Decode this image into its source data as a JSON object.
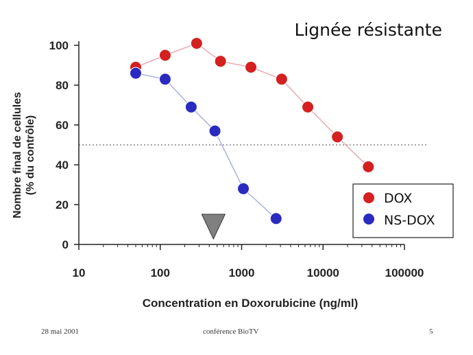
{
  "footer": {
    "date": "28 mai 2001",
    "center": "conférence BioTV",
    "page": "5"
  },
  "chart_data": {
    "type": "scatter",
    "title": "Lignée résistante",
    "xlabel": "Concentration en Doxorubicine (ng/ml)",
    "ylabel_line1": "Nombre final de cellules",
    "ylabel_line2": "(% du contrôle)",
    "x_scale": "log",
    "xlim": [
      10,
      100000
    ],
    "ylim": [
      0,
      100
    ],
    "x_ticks": [
      10,
      100,
      1000,
      10000,
      100000
    ],
    "x_tick_labels": [
      "10",
      "100",
      "1000",
      "10000",
      "100000"
    ],
    "y_ticks": [
      0,
      20,
      40,
      60,
      80,
      100
    ],
    "y_tick_labels": [
      "0",
      "20",
      "40",
      "60",
      "80",
      "100"
    ],
    "grid": false,
    "legend_position": "bottom-right",
    "reference_line": {
      "y": 50,
      "style": "dotted"
    },
    "marker": {
      "x": 450,
      "shape": "triangle-down",
      "color": "#808080"
    },
    "series": [
      {
        "name": "DOX",
        "color": "#d42020",
        "line_color": "#e9a8b4",
        "x": [
          50,
          115,
          280,
          550,
          1300,
          3100,
          6500,
          15000,
          36000
        ],
        "y": [
          89,
          95,
          101,
          92,
          89,
          83,
          69,
          54,
          39
        ]
      },
      {
        "name": "NS-DOX",
        "color": "#2a2ac0",
        "line_color": "#aab0e0",
        "x": [
          50,
          115,
          240,
          470,
          1050,
          2650
        ],
        "y": [
          86,
          83,
          69,
          57,
          28,
          13
        ]
      }
    ]
  }
}
